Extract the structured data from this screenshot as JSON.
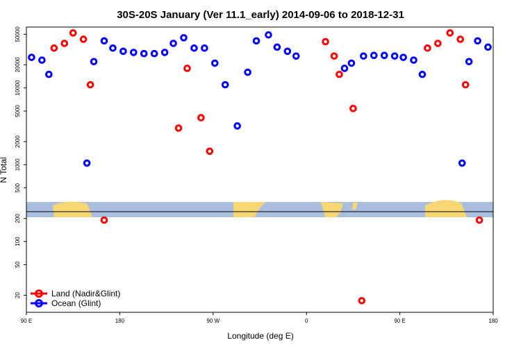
{
  "chart_data": {
    "type": "scatter",
    "title": "30S-20S January (Ver 11.1_early)   2014-09-06 to 2018-12-31",
    "xlabel": "Longitude (deg E)",
    "ylabel": "N Total",
    "x_axis_range": [
      -90,
      180
    ],
    "y_scale": "log",
    "y_axis_range": [
      12,
      62000
    ],
    "x_ticks": [
      {
        "value": -90,
        "label": "90 E"
      },
      {
        "value": -36,
        "label": "180"
      },
      {
        "value": 18,
        "label": "90 W"
      },
      {
        "value": 72,
        "label": "0"
      },
      {
        "value": 126,
        "label": "90 E"
      },
      {
        "value": 180,
        "label": "180"
      }
    ],
    "y_ticks": [
      20,
      50,
      100,
      200,
      500,
      1000,
      2000,
      5000,
      10000,
      20000,
      50000
    ],
    "map_band": {
      "lat_range": "30S-20S",
      "land_color": "#f7d774",
      "ocean_color": "#a9bfdd",
      "center_line": true
    },
    "legend_position": "bottom-left",
    "series": [
      {
        "name": "Land (Nadir&Glint)",
        "color": "#ff0000",
        "points": [
          {
            "x": -74,
            "y": 33000
          },
          {
            "x": -68,
            "y": 38000
          },
          {
            "x": -63,
            "y": 52000
          },
          {
            "x": -57,
            "y": 43000
          },
          {
            "x": -53,
            "y": 11000
          },
          {
            "x": -45,
            "y": 190
          },
          {
            "x": -2,
            "y": 3000
          },
          {
            "x": 3,
            "y": 18000
          },
          {
            "x": 11,
            "y": 4100
          },
          {
            "x": 16,
            "y": 1500
          },
          {
            "x": 83,
            "y": 40000
          },
          {
            "x": 88,
            "y": 26000
          },
          {
            "x": 91,
            "y": 15000
          },
          {
            "x": 99,
            "y": 5400
          },
          {
            "x": 104,
            "y": 17
          },
          {
            "x": 142,
            "y": 33000
          },
          {
            "x": 148,
            "y": 38000
          },
          {
            "x": 155,
            "y": 52000
          },
          {
            "x": 161,
            "y": 43000
          },
          {
            "x": 164,
            "y": 11000
          },
          {
            "x": 172,
            "y": 190
          }
        ]
      },
      {
        "name": "Ocean (Glint)",
        "color": "#0000ff",
        "points": [
          {
            "x": -87,
            "y": 25000
          },
          {
            "x": -81,
            "y": 23000
          },
          {
            "x": -77,
            "y": 15000
          },
          {
            "x": -55,
            "y": 1050
          },
          {
            "x": -51,
            "y": 22000
          },
          {
            "x": -45,
            "y": 41000
          },
          {
            "x": -40,
            "y": 33000
          },
          {
            "x": -34,
            "y": 30000
          },
          {
            "x": -28,
            "y": 29000
          },
          {
            "x": -22,
            "y": 28000
          },
          {
            "x": -16,
            "y": 28000
          },
          {
            "x": -10,
            "y": 29000
          },
          {
            "x": -5,
            "y": 38000
          },
          {
            "x": 1,
            "y": 45000
          },
          {
            "x": 7,
            "y": 33000
          },
          {
            "x": 13,
            "y": 33000
          },
          {
            "x": 19,
            "y": 21000
          },
          {
            "x": 25,
            "y": 11000
          },
          {
            "x": 32,
            "y": 3200
          },
          {
            "x": 38,
            "y": 16000
          },
          {
            "x": 43,
            "y": 41000
          },
          {
            "x": 50,
            "y": 49000
          },
          {
            "x": 55,
            "y": 34000
          },
          {
            "x": 61,
            "y": 30000
          },
          {
            "x": 66,
            "y": 26000
          },
          {
            "x": 94,
            "y": 18000
          },
          {
            "x": 98,
            "y": 21000
          },
          {
            "x": 105,
            "y": 26000
          },
          {
            "x": 111,
            "y": 26500
          },
          {
            "x": 117,
            "y": 26500
          },
          {
            "x": 123,
            "y": 26000
          },
          {
            "x": 128,
            "y": 25000
          },
          {
            "x": 134,
            "y": 23000
          },
          {
            "x": 139,
            "y": 15000
          },
          {
            "x": 162,
            "y": 1050
          },
          {
            "x": 166,
            "y": 22000
          },
          {
            "x": 171,
            "y": 41000
          },
          {
            "x": 177,
            "y": 34000
          }
        ]
      }
    ]
  }
}
